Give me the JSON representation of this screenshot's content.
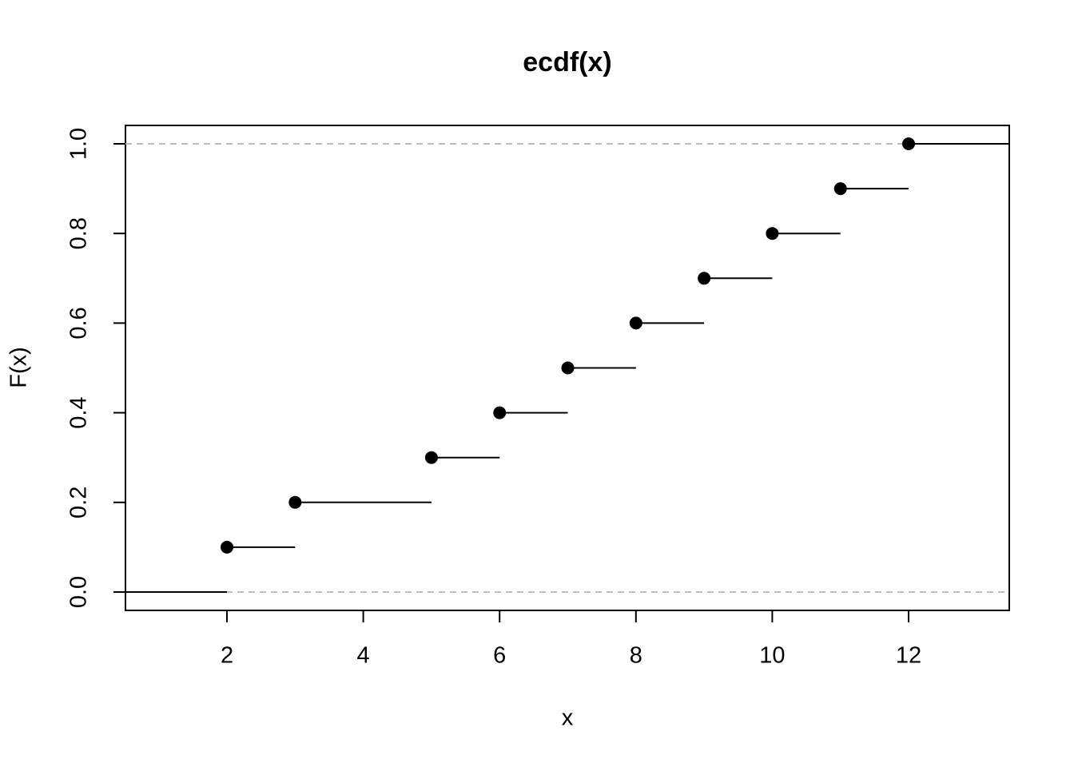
{
  "chart_data": {
    "type": "ecdf",
    "title": "ecdf(x)",
    "x_label": "x",
    "y_label": "F(x)",
    "x": [
      2,
      3,
      5,
      6,
      7,
      8,
      9,
      10,
      11,
      12
    ],
    "values": [
      0.1,
      0.2,
      0.3,
      0.4,
      0.5,
      0.6,
      0.7,
      0.8,
      0.9,
      1.0
    ],
    "color": "#000000",
    "xlim": [
      0.511,
      13.477
    ],
    "ylim": [
      -0.041,
      1.041
    ],
    "xticks": [
      2,
      4,
      6,
      8,
      10,
      12
    ],
    "yticks": [
      {
        "value": 0,
        "label": "0.0"
      },
      {
        "value": 0.2,
        "label": "0.2"
      },
      {
        "value": 0.4,
        "label": "0.4"
      },
      {
        "value": 0.6,
        "label": "0.6"
      },
      {
        "value": 0.8,
        "label": "0.8"
      },
      {
        "value": 1,
        "label": "1.0"
      }
    ],
    "reference_lines": [
      0,
      1
    ],
    "reference_color": "#bebebe"
  }
}
